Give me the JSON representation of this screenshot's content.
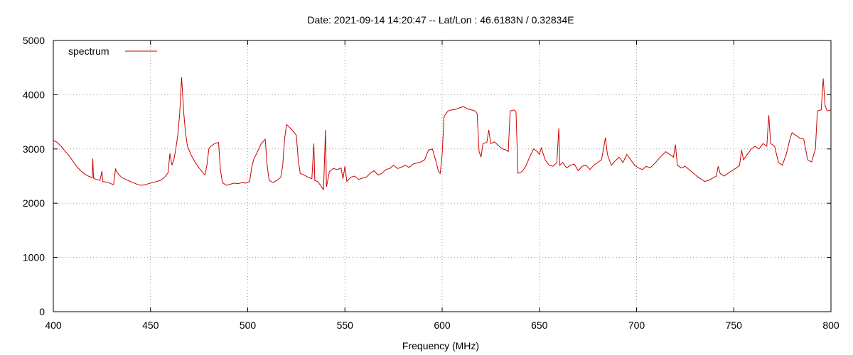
{
  "chart_data": {
    "type": "line",
    "title": "Date: 2021-09-14 14:20:47  --  Lat/Lon : 46.6183N / 0.32834E",
    "xlabel": "Frequency (MHz)",
    "ylabel": "",
    "xlim": [
      400,
      800
    ],
    "ylim": [
      0,
      5000
    ],
    "x_ticks": [
      400,
      450,
      500,
      550,
      600,
      650,
      700,
      750,
      800
    ],
    "y_ticks": [
      0,
      1000,
      2000,
      3000,
      4000,
      5000
    ],
    "x_tick_labels": [
      "400",
      "450",
      "500",
      "550",
      "600",
      "650",
      "700",
      "750",
      "800"
    ],
    "y_tick_labels": [
      "0",
      "1000",
      "2000",
      "3000",
      "4000",
      "5000"
    ],
    "grid": true,
    "legend_position": "top-left",
    "series": [
      {
        "name": "spectrum",
        "color": "#cc0000",
        "points": [
          [
            400,
            3160
          ],
          [
            402,
            3120
          ],
          [
            404,
            3050
          ],
          [
            406,
            2960
          ],
          [
            408,
            2880
          ],
          [
            410,
            2780
          ],
          [
            412,
            2680
          ],
          [
            414,
            2600
          ],
          [
            416,
            2540
          ],
          [
            418,
            2500
          ],
          [
            420,
            2470
          ],
          [
            420.3,
            2820
          ],
          [
            420.7,
            2460
          ],
          [
            422,
            2440
          ],
          [
            424,
            2420
          ],
          [
            425,
            2590
          ],
          [
            425.4,
            2400
          ],
          [
            427,
            2390
          ],
          [
            429,
            2370
          ],
          [
            431,
            2340
          ],
          [
            432,
            2630
          ],
          [
            433,
            2560
          ],
          [
            435,
            2480
          ],
          [
            437,
            2440
          ],
          [
            439,
            2410
          ],
          [
            441,
            2380
          ],
          [
            443,
            2350
          ],
          [
            445,
            2330
          ],
          [
            447,
            2340
          ],
          [
            449,
            2360
          ],
          [
            451,
            2380
          ],
          [
            453,
            2400
          ],
          [
            455,
            2420
          ],
          [
            457,
            2470
          ],
          [
            459,
            2560
          ],
          [
            460,
            2920
          ],
          [
            461,
            2700
          ],
          [
            462,
            2800
          ],
          [
            463,
            3000
          ],
          [
            464,
            3250
          ],
          [
            465,
            3650
          ],
          [
            466,
            4320
          ],
          [
            467,
            3700
          ],
          [
            468,
            3300
          ],
          [
            469,
            3050
          ],
          [
            471,
            2880
          ],
          [
            473,
            2750
          ],
          [
            475,
            2650
          ],
          [
            477,
            2560
          ],
          [
            478,
            2520
          ],
          [
            479,
            2700
          ],
          [
            480,
            3000
          ],
          [
            481,
            3050
          ],
          [
            483,
            3100
          ],
          [
            485,
            3120
          ],
          [
            486,
            2600
          ],
          [
            487,
            2380
          ],
          [
            489,
            2330
          ],
          [
            491,
            2350
          ],
          [
            493,
            2370
          ],
          [
            495,
            2360
          ],
          [
            497,
            2380
          ],
          [
            499,
            2370
          ],
          [
            501,
            2400
          ],
          [
            502,
            2650
          ],
          [
            503,
            2800
          ],
          [
            505,
            2950
          ],
          [
            507,
            3100
          ],
          [
            509,
            3180
          ],
          [
            510,
            2700
          ],
          [
            511,
            2420
          ],
          [
            513,
            2380
          ],
          [
            515,
            2420
          ],
          [
            517,
            2480
          ],
          [
            518,
            2700
          ],
          [
            519,
            3200
          ],
          [
            520,
            3450
          ],
          [
            522,
            3380
          ],
          [
            524,
            3300
          ],
          [
            525,
            3250
          ],
          [
            526,
            2800
          ],
          [
            527,
            2550
          ],
          [
            529,
            2520
          ],
          [
            531,
            2480
          ],
          [
            533,
            2450
          ],
          [
            534,
            3100
          ],
          [
            534.5,
            2420
          ],
          [
            536,
            2400
          ],
          [
            538,
            2300
          ],
          [
            539,
            2250
          ],
          [
            540,
            3350
          ],
          [
            540.5,
            2300
          ],
          [
            542,
            2580
          ],
          [
            544,
            2640
          ],
          [
            546,
            2620
          ],
          [
            548,
            2650
          ],
          [
            549,
            2450
          ],
          [
            550,
            2680
          ],
          [
            551,
            2400
          ],
          [
            553,
            2480
          ],
          [
            555,
            2500
          ],
          [
            557,
            2440
          ],
          [
            559,
            2460
          ],
          [
            561,
            2480
          ],
          [
            563,
            2550
          ],
          [
            565,
            2600
          ],
          [
            567,
            2520
          ],
          [
            569,
            2550
          ],
          [
            571,
            2620
          ],
          [
            573,
            2640
          ],
          [
            575,
            2700
          ],
          [
            577,
            2640
          ],
          [
            579,
            2660
          ],
          [
            581,
            2700
          ],
          [
            583,
            2660
          ],
          [
            585,
            2720
          ],
          [
            587,
            2740
          ],
          [
            589,
            2760
          ],
          [
            591,
            2800
          ],
          [
            593,
            2980
          ],
          [
            595,
            3000
          ],
          [
            597,
            2750
          ],
          [
            598,
            2600
          ],
          [
            599,
            2550
          ],
          [
            600,
            2900
          ],
          [
            601,
            3600
          ],
          [
            603,
            3700
          ],
          [
            605,
            3720
          ],
          [
            607,
            3730
          ],
          [
            609,
            3760
          ],
          [
            611,
            3780
          ],
          [
            613,
            3740
          ],
          [
            615,
            3720
          ],
          [
            617,
            3700
          ],
          [
            618,
            3650
          ],
          [
            619,
            2950
          ],
          [
            620,
            2850
          ],
          [
            621,
            3100
          ],
          [
            623,
            3120
          ],
          [
            624,
            3350
          ],
          [
            625,
            3100
          ],
          [
            627,
            3130
          ],
          [
            629,
            3060
          ],
          [
            631,
            3000
          ],
          [
            633,
            2980
          ],
          [
            634,
            2950
          ],
          [
            635,
            3700
          ],
          [
            637,
            3720
          ],
          [
            638,
            3680
          ],
          [
            639,
            2550
          ],
          [
            641,
            2580
          ],
          [
            643,
            2680
          ],
          [
            645,
            2850
          ],
          [
            647,
            3000
          ],
          [
            649,
            2950
          ],
          [
            650,
            2900
          ],
          [
            651,
            3020
          ],
          [
            653,
            2800
          ],
          [
            655,
            2700
          ],
          [
            657,
            2680
          ],
          [
            659,
            2750
          ],
          [
            660,
            3380
          ],
          [
            660.5,
            2700
          ],
          [
            662,
            2750
          ],
          [
            664,
            2650
          ],
          [
            666,
            2700
          ],
          [
            668,
            2720
          ],
          [
            670,
            2600
          ],
          [
            672,
            2680
          ],
          [
            674,
            2700
          ],
          [
            676,
            2620
          ],
          [
            678,
            2700
          ],
          [
            680,
            2750
          ],
          [
            682,
            2800
          ],
          [
            684,
            3210
          ],
          [
            685,
            2900
          ],
          [
            687,
            2700
          ],
          [
            689,
            2780
          ],
          [
            691,
            2850
          ],
          [
            693,
            2750
          ],
          [
            695,
            2900
          ],
          [
            697,
            2800
          ],
          [
            699,
            2700
          ],
          [
            701,
            2650
          ],
          [
            703,
            2620
          ],
          [
            705,
            2680
          ],
          [
            707,
            2650
          ],
          [
            709,
            2720
          ],
          [
            711,
            2800
          ],
          [
            713,
            2880
          ],
          [
            715,
            2950
          ],
          [
            717,
            2900
          ],
          [
            719,
            2850
          ],
          [
            720,
            3080
          ],
          [
            721,
            2700
          ],
          [
            723,
            2650
          ],
          [
            725,
            2680
          ],
          [
            727,
            2620
          ],
          [
            729,
            2560
          ],
          [
            731,
            2500
          ],
          [
            733,
            2450
          ],
          [
            735,
            2400
          ],
          [
            737,
            2420
          ],
          [
            739,
            2460
          ],
          [
            741,
            2500
          ],
          [
            742,
            2680
          ],
          [
            743,
            2550
          ],
          [
            745,
            2500
          ],
          [
            747,
            2550
          ],
          [
            749,
            2600
          ],
          [
            751,
            2640
          ],
          [
            753,
            2700
          ],
          [
            754,
            2980
          ],
          [
            755,
            2800
          ],
          [
            757,
            2900
          ],
          [
            759,
            3000
          ],
          [
            761,
            3050
          ],
          [
            763,
            3000
          ],
          [
            765,
            3100
          ],
          [
            767,
            3050
          ],
          [
            768,
            3620
          ],
          [
            769,
            3100
          ],
          [
            771,
            3050
          ],
          [
            773,
            2750
          ],
          [
            775,
            2700
          ],
          [
            777,
            2900
          ],
          [
            779,
            3200
          ],
          [
            780,
            3300
          ],
          [
            782,
            3250
          ],
          [
            784,
            3200
          ],
          [
            786,
            3180
          ],
          [
            788,
            2800
          ],
          [
            790,
            2760
          ],
          [
            792,
            3000
          ],
          [
            793,
            3700
          ],
          [
            795,
            3720
          ],
          [
            796,
            4300
          ],
          [
            797,
            3800
          ],
          [
            798,
            3700
          ],
          [
            800,
            3720
          ]
        ]
      }
    ]
  }
}
